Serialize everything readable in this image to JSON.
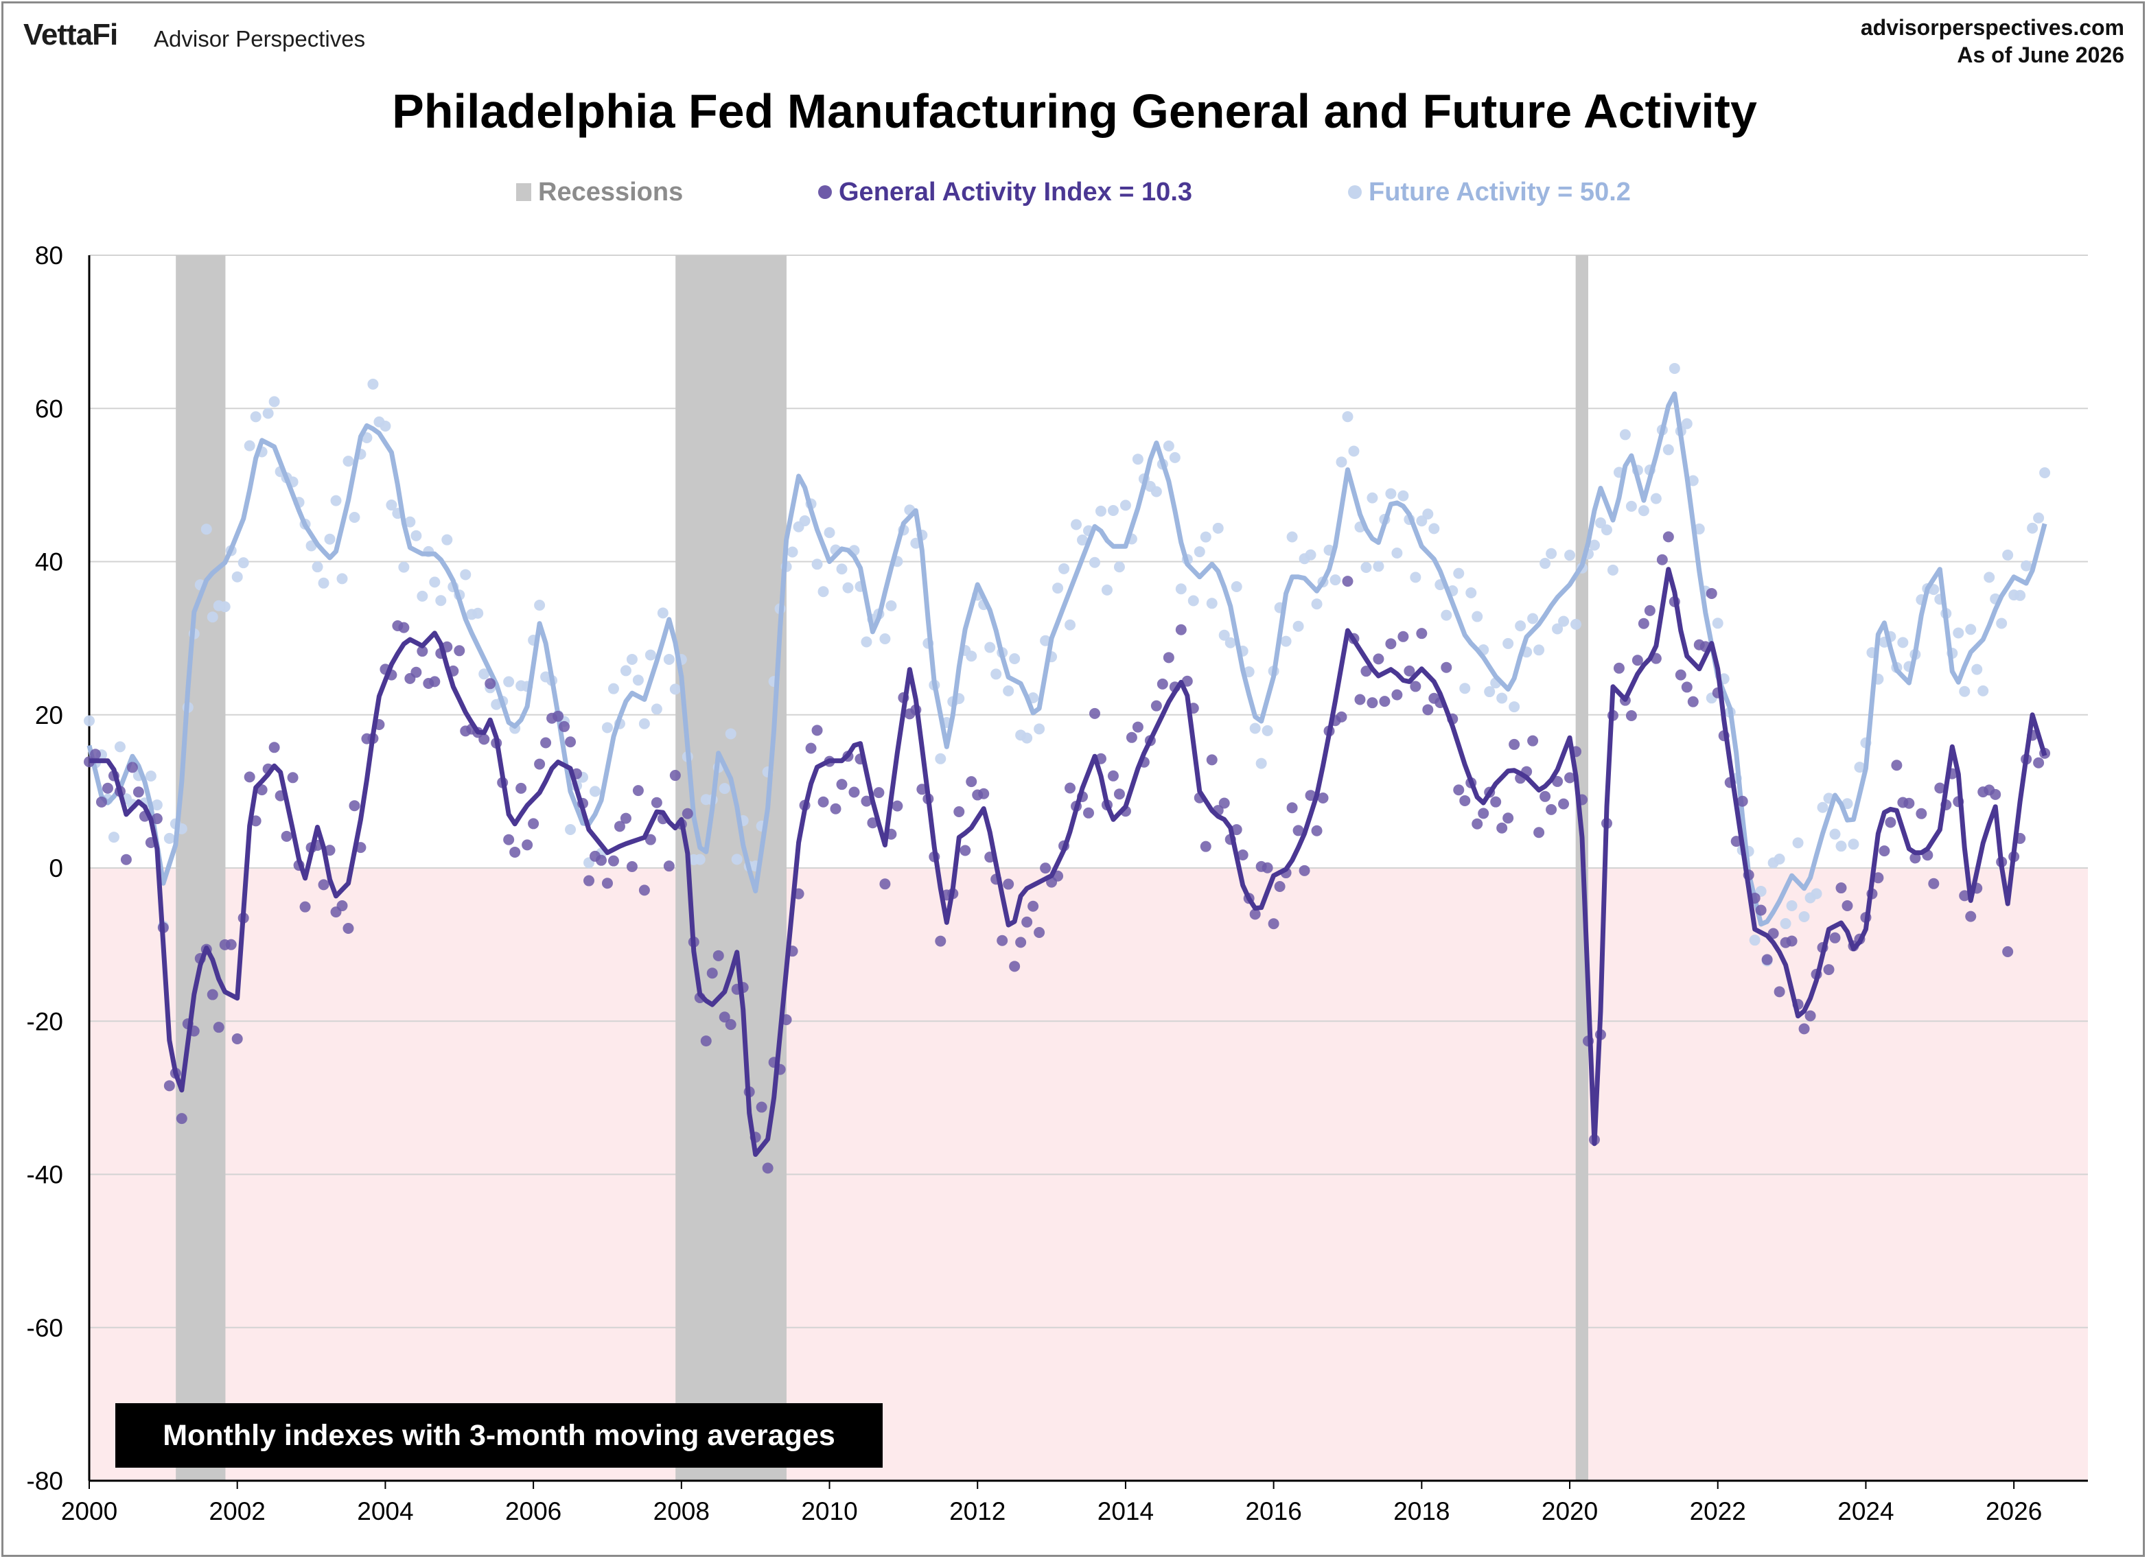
{
  "header": {
    "brand": "VettaFi",
    "brand_sub": "Advisor Perspectives",
    "site": "advisorperspectives.com",
    "as_of": "As of June 2026"
  },
  "note": "Monthly indexes with 3-month moving averages",
  "colors": {
    "general": "#4a3793",
    "general_dots": "#6d5aa8",
    "future": "#9db6df",
    "future_dots": "#c5d5ee",
    "recession": "#c8c8c8",
    "negative_zone": "#fdeaec",
    "grid": "#d3d3d3"
  },
  "chart_data": {
    "type": "line",
    "title": "Philadelphia Fed Manufacturing General and Future Activity",
    "xlabel": "",
    "ylabel": "",
    "ylim": [
      -80,
      80
    ],
    "xlim": [
      2000,
      2027.0
    ],
    "grid": true,
    "legend_position": "top",
    "x_ticks": [
      "2000",
      "2002",
      "2004",
      "2006",
      "2008",
      "2010",
      "2012",
      "2014",
      "2016",
      "2018",
      "2020",
      "2022",
      "2024",
      "2026"
    ],
    "y_ticks": [
      "80",
      "60",
      "40",
      "20",
      "0",
      "-20",
      "-40",
      "-60",
      "-80"
    ],
    "legend": [
      {
        "key": "recessions",
        "label": "Recessions"
      },
      {
        "key": "general",
        "label": "General Activity Index = 10.3"
      },
      {
        "key": "future",
        "label": "Future Activity = 50.2"
      }
    ],
    "recessions": [
      [
        2001.17,
        2001.84
      ],
      [
        2007.92,
        2009.42
      ],
      [
        2020.08,
        2020.25
      ]
    ],
    "general_ma_anchors": [
      [
        2000.0,
        14
      ],
      [
        2000.3,
        14
      ],
      [
        2000.5,
        7
      ],
      [
        2000.7,
        9
      ],
      [
        2000.9,
        5
      ],
      [
        2001.1,
        -25
      ],
      [
        2001.25,
        -29
      ],
      [
        2001.45,
        -14
      ],
      [
        2001.6,
        -10
      ],
      [
        2001.8,
        -16
      ],
      [
        2002.0,
        -17
      ],
      [
        2002.2,
        10
      ],
      [
        2002.4,
        12
      ],
      [
        2002.55,
        14
      ],
      [
        2002.75,
        5
      ],
      [
        2002.9,
        -2
      ],
      [
        2003.1,
        6
      ],
      [
        2003.3,
        -4
      ],
      [
        2003.5,
        -2
      ],
      [
        2003.7,
        8
      ],
      [
        2003.9,
        22
      ],
      [
        2004.1,
        27
      ],
      [
        2004.3,
        30
      ],
      [
        2004.5,
        29
      ],
      [
        2004.7,
        31
      ],
      [
        2004.9,
        24
      ],
      [
        2005.1,
        20
      ],
      [
        2005.3,
        17
      ],
      [
        2005.45,
        20
      ],
      [
        2005.7,
        5
      ],
      [
        2005.9,
        8
      ],
      [
        2006.1,
        10
      ],
      [
        2006.3,
        14
      ],
      [
        2006.5,
        13
      ],
      [
        2006.75,
        5
      ],
      [
        2007.0,
        2
      ],
      [
        2007.2,
        3
      ],
      [
        2007.5,
        4
      ],
      [
        2007.7,
        8
      ],
      [
        2007.9,
        5
      ],
      [
        2008.05,
        7
      ],
      [
        2008.2,
        -16
      ],
      [
        2008.4,
        -18
      ],
      [
        2008.6,
        -16
      ],
      [
        2008.75,
        -11
      ],
      [
        2008.85,
        -20
      ],
      [
        2008.95,
        -38
      ],
      [
        2009.2,
        -35
      ],
      [
        2009.4,
        -15
      ],
      [
        2009.6,
        5
      ],
      [
        2009.8,
        13
      ],
      [
        2010.0,
        14
      ],
      [
        2010.2,
        14
      ],
      [
        2010.4,
        17
      ],
      [
        2010.6,
        8
      ],
      [
        2010.75,
        3
      ],
      [
        2010.9,
        14
      ],
      [
        2011.1,
        27
      ],
      [
        2011.3,
        12
      ],
      [
        2011.45,
        0
      ],
      [
        2011.6,
        -8
      ],
      [
        2011.75,
        4
      ],
      [
        2011.9,
        5
      ],
      [
        2012.1,
        8
      ],
      [
        2012.3,
        -2
      ],
      [
        2012.45,
        -9
      ],
      [
        2012.6,
        -3
      ],
      [
        2012.8,
        -2
      ],
      [
        2013.0,
        -1
      ],
      [
        2013.2,
        3
      ],
      [
        2013.4,
        10
      ],
      [
        2013.6,
        15
      ],
      [
        2013.8,
        6
      ],
      [
        2014.0,
        8
      ],
      [
        2014.2,
        14
      ],
      [
        2014.4,
        18
      ],
      [
        2014.6,
        22
      ],
      [
        2014.8,
        25
      ],
      [
        2015.0,
        10
      ],
      [
        2015.2,
        7
      ],
      [
        2015.4,
        6
      ],
      [
        2015.6,
        -3
      ],
      [
        2015.8,
        -6
      ],
      [
        2016.0,
        -1
      ],
      [
        2016.2,
        0
      ],
      [
        2016.4,
        4
      ],
      [
        2016.6,
        10
      ],
      [
        2016.8,
        20
      ],
      [
        2017.0,
        31
      ],
      [
        2017.2,
        28
      ],
      [
        2017.4,
        25
      ],
      [
        2017.6,
        26
      ],
      [
        2017.8,
        24
      ],
      [
        2018.0,
        26
      ],
      [
        2018.2,
        24
      ],
      [
        2018.4,
        19
      ],
      [
        2018.6,
        13
      ],
      [
        2018.8,
        8
      ],
      [
        2019.0,
        11
      ],
      [
        2019.2,
        13
      ],
      [
        2019.4,
        12
      ],
      [
        2019.6,
        10
      ],
      [
        2019.8,
        12
      ],
      [
        2020.0,
        17
      ],
      [
        2020.15,
        8
      ],
      [
        2020.35,
        -40
      ],
      [
        2020.55,
        24
      ],
      [
        2020.75,
        22
      ],
      [
        2020.95,
        26
      ],
      [
        2021.15,
        28
      ],
      [
        2021.35,
        40
      ],
      [
        2021.55,
        28
      ],
      [
        2021.75,
        26
      ],
      [
        2021.95,
        30
      ],
      [
        2022.1,
        18
      ],
      [
        2022.3,
        5
      ],
      [
        2022.5,
        -8
      ],
      [
        2022.7,
        -9
      ],
      [
        2022.9,
        -12
      ],
      [
        2023.1,
        -20
      ],
      [
        2023.3,
        -16
      ],
      [
        2023.5,
        -8
      ],
      [
        2023.7,
        -7
      ],
      [
        2023.85,
        -11
      ],
      [
        2024.0,
        -8
      ],
      [
        2024.2,
        7
      ],
      [
        2024.4,
        8
      ],
      [
        2024.6,
        2
      ],
      [
        2024.8,
        2
      ],
      [
        2025.0,
        5
      ],
      [
        2025.2,
        18
      ],
      [
        2025.4,
        -5
      ],
      [
        2025.6,
        4
      ],
      [
        2025.75,
        8
      ],
      [
        2025.9,
        -6
      ],
      [
        2026.1,
        10
      ],
      [
        2026.25,
        20
      ],
      [
        2026.5,
        12
      ]
    ],
    "future_ma_anchors": [
      [
        2000.0,
        16
      ],
      [
        2000.2,
        8
      ],
      [
        2000.4,
        10
      ],
      [
        2000.6,
        15
      ],
      [
        2000.8,
        10
      ],
      [
        2001.0,
        -2
      ],
      [
        2001.2,
        4
      ],
      [
        2001.4,
        33
      ],
      [
        2001.6,
        38
      ],
      [
        2001.85,
        40
      ],
      [
        2002.1,
        46
      ],
      [
        2002.3,
        56
      ],
      [
        2002.5,
        55
      ],
      [
        2002.7,
        50
      ],
      [
        2002.9,
        45
      ],
      [
        2003.1,
        42
      ],
      [
        2003.3,
        40
      ],
      [
        2003.5,
        48
      ],
      [
        2003.7,
        58
      ],
      [
        2003.9,
        57
      ],
      [
        2004.1,
        54
      ],
      [
        2004.3,
        42
      ],
      [
        2004.5,
        41
      ],
      [
        2004.7,
        41
      ],
      [
        2004.9,
        38
      ],
      [
        2005.1,
        32
      ],
      [
        2005.3,
        28
      ],
      [
        2005.5,
        24
      ],
      [
        2005.7,
        18
      ],
      [
        2005.9,
        20
      ],
      [
        2006.1,
        33
      ],
      [
        2006.3,
        22
      ],
      [
        2006.5,
        10
      ],
      [
        2006.7,
        5
      ],
      [
        2006.9,
        8
      ],
      [
        2007.1,
        18
      ],
      [
        2007.3,
        23
      ],
      [
        2007.5,
        22
      ],
      [
        2007.7,
        28
      ],
      [
        2007.85,
        33
      ],
      [
        2008.0,
        25
      ],
      [
        2008.2,
        3
      ],
      [
        2008.35,
        2
      ],
      [
        2008.5,
        15
      ],
      [
        2008.7,
        11
      ],
      [
        2008.85,
        2
      ],
      [
        2009.0,
        -3
      ],
      [
        2009.2,
        10
      ],
      [
        2009.4,
        42
      ],
      [
        2009.6,
        52
      ],
      [
        2009.8,
        45
      ],
      [
        2010.0,
        40
      ],
      [
        2010.2,
        42
      ],
      [
        2010.4,
        40
      ],
      [
        2010.6,
        30
      ],
      [
        2010.8,
        38
      ],
      [
        2011.0,
        45
      ],
      [
        2011.2,
        47
      ],
      [
        2011.4,
        25
      ],
      [
        2011.6,
        15
      ],
      [
        2011.8,
        30
      ],
      [
        2012.0,
        37
      ],
      [
        2012.2,
        33
      ],
      [
        2012.4,
        25
      ],
      [
        2012.6,
        24
      ],
      [
        2012.8,
        19
      ],
      [
        2013.0,
        30
      ],
      [
        2013.2,
        35
      ],
      [
        2013.4,
        40
      ],
      [
        2013.6,
        45
      ],
      [
        2013.8,
        42
      ],
      [
        2014.0,
        42
      ],
      [
        2014.2,
        48
      ],
      [
        2014.4,
        56
      ],
      [
        2014.6,
        50
      ],
      [
        2014.8,
        40
      ],
      [
        2015.0,
        38
      ],
      [
        2015.2,
        40
      ],
      [
        2015.4,
        35
      ],
      [
        2015.6,
        25
      ],
      [
        2015.8,
        18
      ],
      [
        2016.0,
        25
      ],
      [
        2016.2,
        38
      ],
      [
        2016.4,
        38
      ],
      [
        2016.6,
        36
      ],
      [
        2016.8,
        40
      ],
      [
        2017.0,
        52
      ],
      [
        2017.2,
        45
      ],
      [
        2017.4,
        42
      ],
      [
        2017.6,
        48
      ],
      [
        2017.8,
        47
      ],
      [
        2018.0,
        42
      ],
      [
        2018.2,
        40
      ],
      [
        2018.4,
        35
      ],
      [
        2018.6,
        30
      ],
      [
        2018.8,
        28
      ],
      [
        2019.0,
        25
      ],
      [
        2019.2,
        23
      ],
      [
        2019.4,
        30
      ],
      [
        2019.6,
        32
      ],
      [
        2019.8,
        35
      ],
      [
        2020.0,
        37
      ],
      [
        2020.2,
        40
      ],
      [
        2020.4,
        50
      ],
      [
        2020.6,
        45
      ],
      [
        2020.8,
        55
      ],
      [
        2021.0,
        48
      ],
      [
        2021.2,
        55
      ],
      [
        2021.4,
        63
      ],
      [
        2021.6,
        50
      ],
      [
        2021.8,
        35
      ],
      [
        2022.0,
        25
      ],
      [
        2022.2,
        20
      ],
      [
        2022.4,
        0
      ],
      [
        2022.6,
        -8
      ],
      [
        2022.8,
        -5
      ],
      [
        2023.0,
        -1
      ],
      [
        2023.2,
        -3
      ],
      [
        2023.4,
        4
      ],
      [
        2023.6,
        10
      ],
      [
        2023.8,
        5
      ],
      [
        2024.0,
        13
      ],
      [
        2024.2,
        34
      ],
      [
        2024.4,
        26
      ],
      [
        2024.6,
        24
      ],
      [
        2024.8,
        36
      ],
      [
        2025.0,
        39
      ],
      [
        2025.2,
        23
      ],
      [
        2025.4,
        28
      ],
      [
        2025.6,
        30
      ],
      [
        2025.8,
        35
      ],
      [
        2026.0,
        38
      ],
      [
        2026.2,
        37
      ],
      [
        2026.5,
        48
      ]
    ],
    "general_monthly_seed": 7,
    "future_monthly_seed": 13
  }
}
